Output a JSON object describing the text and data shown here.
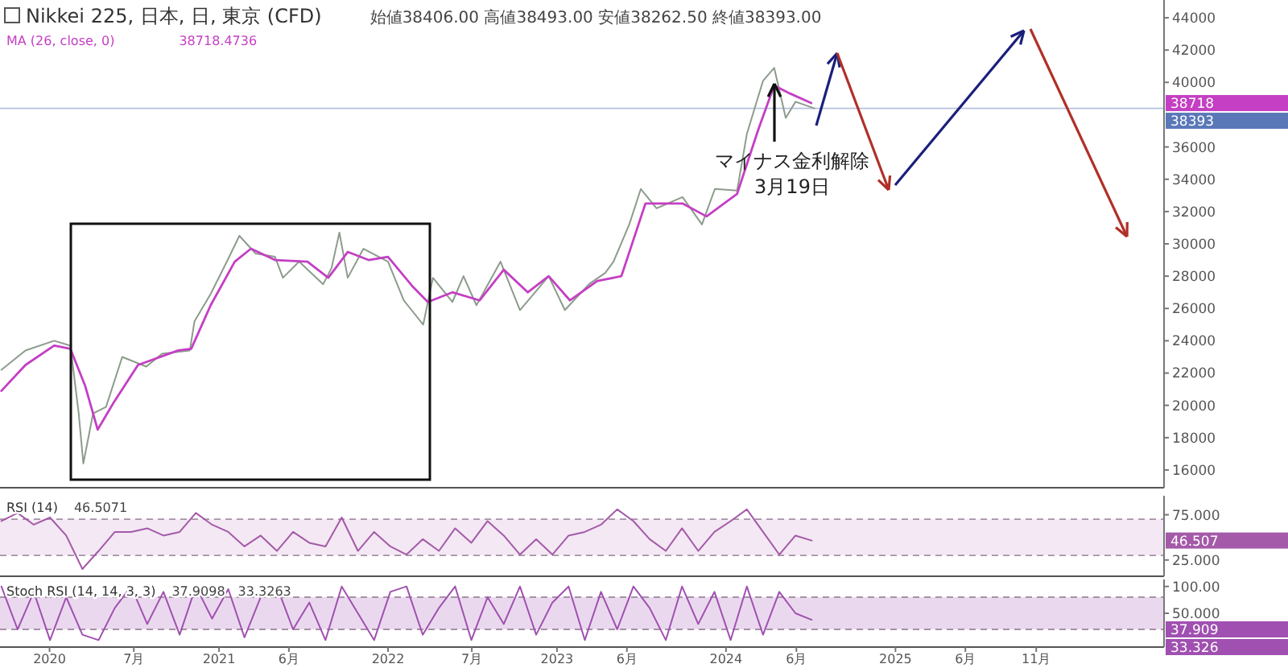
{
  "chart_data": [
    {
      "type": "line",
      "title": "Nikkei 225, 日本, 日, 東京 (CFD)",
      "subtitle": "始値38406.00  高値38493.00  安値38262.50  終値38393.00",
      "legend": "top left",
      "tick_labels": "y",
      "xlim": [
        "2019-09-16",
        "2026-08-04"
      ],
      "ylim": [
        14900,
        45100
      ],
      "yticks": [
        16000,
        18000,
        20000,
        22000,
        24000,
        26000,
        28000,
        30000,
        32000,
        34000,
        36000,
        40000,
        42000,
        44000
      ],
      "series": [
        {
          "color": "#8c9c8c",
          "x": [
            "2019-09-19",
            "2019-11-10",
            "2020-01-11",
            "2020-02-15",
            "2020-03-04",
            "2020-03-14",
            "2020-04-04",
            "2020-05-02",
            "2020-06-06",
            "2020-07-28",
            "2020-08-31",
            "2020-10-30",
            "2020-11-09",
            "2020-12-14",
            "2021-01-18",
            "2021-02-14",
            "2021-03-21",
            "2021-05-02",
            "2021-05-19",
            "2021-06-23",
            "2021-08-14",
            "2021-09-01",
            "2021-09-18",
            "2021-10-06",
            "2021-11-09",
            "2022-01-01",
            "2022-02-04",
            "2022-03-18",
            "2022-04-08",
            "2022-05-20",
            "2022-06-13",
            "2022-07-11",
            "2022-09-01",
            "2022-10-13",
            "2022-12-14",
            "2023-01-18",
            "2023-03-11",
            "2023-04-15",
            "2023-05-03",
            "2023-06-06",
            "2023-07-01",
            "2023-08-04",
            "2023-09-29",
            "2023-11-10",
            "2023-12-08",
            "2024-01-25",
            "2024-02-15",
            "2024-03-21",
            "2024-04-14",
            "2024-05-09",
            "2024-05-30",
            "2024-07-10"
          ],
          "values": [
            22200,
            23400,
            24000,
            23700,
            19500,
            16400,
            19500,
            19900,
            23000,
            22400,
            23200,
            23400,
            25200,
            26900,
            28900,
            30500,
            29400,
            29200,
            27900,
            28900,
            27500,
            28500,
            30700,
            27900,
            29700,
            28900,
            26500,
            25000,
            27900,
            26400,
            28000,
            26200,
            28900,
            25900,
            28000,
            25900,
            27500,
            28200,
            28900,
            31200,
            33400,
            32200,
            32900,
            31200,
            33400,
            33300,
            36800,
            40100,
            40900,
            37800,
            38800,
            38393
          ]
        },
        {
          "name": "MA (26, close, 0)",
          "color": "#c43fc4",
          "x": [
            "2019-09-19",
            "2019-11-10",
            "2020-01-11",
            "2020-02-15",
            "2020-03-18",
            "2020-04-14",
            "2020-05-19",
            "2020-07-10",
            "2020-10-05",
            "2020-11-02",
            "2020-12-14",
            "2021-02-04",
            "2021-03-11",
            "2021-05-02",
            "2021-07-11",
            "2021-08-25",
            "2021-10-06",
            "2021-11-20",
            "2022-01-01",
            "2022-02-22",
            "2022-03-28",
            "2022-05-20",
            "2022-07-18",
            "2022-09-08",
            "2022-10-30",
            "2022-12-14",
            "2023-01-29",
            "2023-03-29",
            "2023-05-20",
            "2023-07-11",
            "2023-09-29",
            "2023-11-20",
            "2024-01-25",
            "2024-03-11",
            "2024-04-14",
            "2024-05-19",
            "2024-07-03"
          ],
          "values": [
            20900,
            22500,
            23700,
            23500,
            21200,
            18500,
            20200,
            22500,
            23400,
            23500,
            26200,
            28900,
            29700,
            29000,
            28900,
            27900,
            29500,
            29000,
            29200,
            27400,
            26400,
            27000,
            26500,
            28400,
            27000,
            28000,
            26500,
            27700,
            28000,
            32500,
            32500,
            31700,
            33100,
            37100,
            39800,
            39300,
            38718
          ]
        }
      ],
      "ref_lines": [
        {
          "axis": "y",
          "value": 38393,
          "label": "38393",
          "color": "#5a78b8"
        }
      ],
      "annotations": [
        "38718.4736",
        "マイナス金利解除",
        "3月19日",
        {
          "text": "38718",
          "x": "2026-08-04",
          "y": 38718
        }
      ]
    },
    {
      "type": "line",
      "title": "RSI (14)",
      "tick_labels": "y",
      "xlim": [
        "2019-09-16",
        "2026-08-04"
      ],
      "ylim": [
        7,
        96
      ],
      "yticks": [
        {
          "value": 25,
          "label": "25.000"
        },
        {
          "value": 75,
          "label": "75.000"
        }
      ],
      "bands": [
        {
          "axis": "y",
          "from": 30,
          "to": 70,
          "color": "#f3e8f3"
        }
      ],
      "ref_lines": [
        {
          "axis": "y",
          "value": 30,
          "color": "#a890a8",
          "line_style": "dashed"
        },
        {
          "axis": "y",
          "value": 70,
          "color": "#a890a8",
          "line_style": "dashed"
        }
      ],
      "x": [
        "2019-09-19",
        "2019-10-24",
        "2019-11-28",
        "2020-01-02",
        "2020-02-06",
        "2020-03-12",
        "2020-04-16",
        "2020-05-21",
        "2020-06-25",
        "2020-07-30",
        "2020-09-03",
        "2020-10-08",
        "2020-11-12",
        "2020-12-17",
        "2021-01-21",
        "2021-02-25",
        "2021-04-01",
        "2021-05-06",
        "2021-06-10",
        "2021-07-15",
        "2021-08-19",
        "2021-09-23",
        "2021-10-28",
        "2021-12-02",
        "2022-01-06",
        "2022-02-10",
        "2022-03-17",
        "2022-04-21",
        "2022-05-26",
        "2022-06-30",
        "2022-08-04",
        "2022-09-08",
        "2022-10-13",
        "2022-11-17",
        "2022-12-22",
        "2023-01-26",
        "2023-03-02",
        "2023-04-06",
        "2023-05-11",
        "2023-06-15",
        "2023-07-20",
        "2023-08-24",
        "2023-09-28",
        "2023-11-02",
        "2023-12-07",
        "2024-01-11",
        "2024-02-15",
        "2024-03-21",
        "2024-04-25",
        "2024-05-30",
        "2024-07-04"
      ],
      "series": [
        {
          "color": "#a45aa8",
          "values": [
            68,
            77,
            64,
            72,
            52,
            15,
            35,
            56,
            56,
            60,
            52,
            56,
            77,
            64,
            56,
            40,
            52,
            35,
            56,
            44,
            40,
            72,
            35,
            56,
            40,
            31,
            48,
            35,
            60,
            44,
            68,
            52,
            31,
            48,
            31,
            52,
            56,
            64,
            81,
            68,
            48,
            35,
            60,
            35,
            56,
            68,
            81,
            56,
            31,
            52,
            46.5
          ]
        }
      ],
      "annotations": [
        "46.5071",
        {
          "text": "46.507",
          "x": "2026-08-04",
          "y": 46.507
        }
      ]
    },
    {
      "type": "line",
      "title": "Stoch RSI (14, 14, 3, 3)",
      "xlim": [
        "2019-09-16",
        "2026-08-04"
      ],
      "ylim": [
        -13,
        113
      ],
      "yticks": [
        {
          "value": 50,
          "label": "50.000"
        },
        {
          "value": 100,
          "label": "100.00"
        }
      ],
      "xticks": [
        {
          "value": "2020-01-01",
          "label": "2020"
        },
        {
          "value": "2020-07-01",
          "label": "7月"
        },
        {
          "value": "2021-01-01",
          "label": "2021"
        },
        {
          "value": "2021-06-01",
          "label": "6月"
        },
        {
          "value": "2022-01-01",
          "label": "2022"
        },
        {
          "value": "2022-07-01",
          "label": "7月"
        },
        {
          "value": "2023-01-01",
          "label": "2023"
        },
        {
          "value": "2023-06-01",
          "label": "6月"
        },
        {
          "value": "2024-01-01",
          "label": "2024"
        },
        {
          "value": "2024-06-01",
          "label": "6月"
        },
        {
          "value": "2025-01-01",
          "label": "2025"
        },
        {
          "value": "2025-06-01",
          "label": "6月"
        },
        {
          "value": "2025-11-01",
          "label": "11月"
        }
      ],
      "bands": [
        {
          "axis": "y",
          "from": 20,
          "to": 80,
          "color": "#ead9ee"
        }
      ],
      "ref_lines": [
        {
          "axis": "y",
          "value": 20,
          "color": "#a890a8",
          "line_style": "dashed"
        },
        {
          "axis": "y",
          "value": 80,
          "color": "#a890a8",
          "line_style": "dashed"
        }
      ],
      "x": [
        "2019-09-19",
        "2019-10-24",
        "2019-11-28",
        "2020-01-02",
        "2020-02-06",
        "2020-03-12",
        "2020-04-16",
        "2020-05-21",
        "2020-06-25",
        "2020-07-30",
        "2020-09-03",
        "2020-10-08",
        "2020-11-12",
        "2020-12-17",
        "2021-01-21",
        "2021-02-25",
        "2021-04-01",
        "2021-05-06",
        "2021-06-10",
        "2021-07-15",
        "2021-08-19",
        "2021-09-23",
        "2021-10-28",
        "2021-12-02",
        "2022-01-06",
        "2022-02-10",
        "2022-03-17",
        "2022-04-21",
        "2022-05-26",
        "2022-06-30",
        "2022-08-04",
        "2022-09-08",
        "2022-10-13",
        "2022-11-17",
        "2022-12-22",
        "2023-01-26",
        "2023-03-02",
        "2023-04-06",
        "2023-05-11",
        "2023-06-15",
        "2023-07-20",
        "2023-08-24",
        "2023-09-28",
        "2023-11-02",
        "2023-12-07",
        "2024-01-11",
        "2024-02-15",
        "2024-03-21",
        "2024-04-25",
        "2024-05-30",
        "2024-07-04"
      ],
      "series": [
        {
          "color": "#a050b0",
          "values": [
            100,
            20,
            90,
            0,
            80,
            10,
            0,
            60,
            100,
            30,
            90,
            10,
            100,
            40,
            95,
            5,
            80,
            100,
            20,
            70,
            0,
            100,
            50,
            0,
            90,
            100,
            10,
            60,
            100,
            0,
            80,
            30,
            100,
            10,
            70,
            100,
            0,
            90,
            20,
            100,
            60,
            0,
            100,
            30,
            90,
            0,
            100,
            10,
            90,
            50,
            37.9
          ]
        }
      ],
      "annotations": [
        "37.9098",
        "33.3263",
        {
          "text": "37.909",
          "x": "2026-08-04",
          "y": 37.909
        },
        {
          "text": "33.326",
          "x": "2026-08-04",
          "y": 33.326
        }
      ]
    }
  ]
}
